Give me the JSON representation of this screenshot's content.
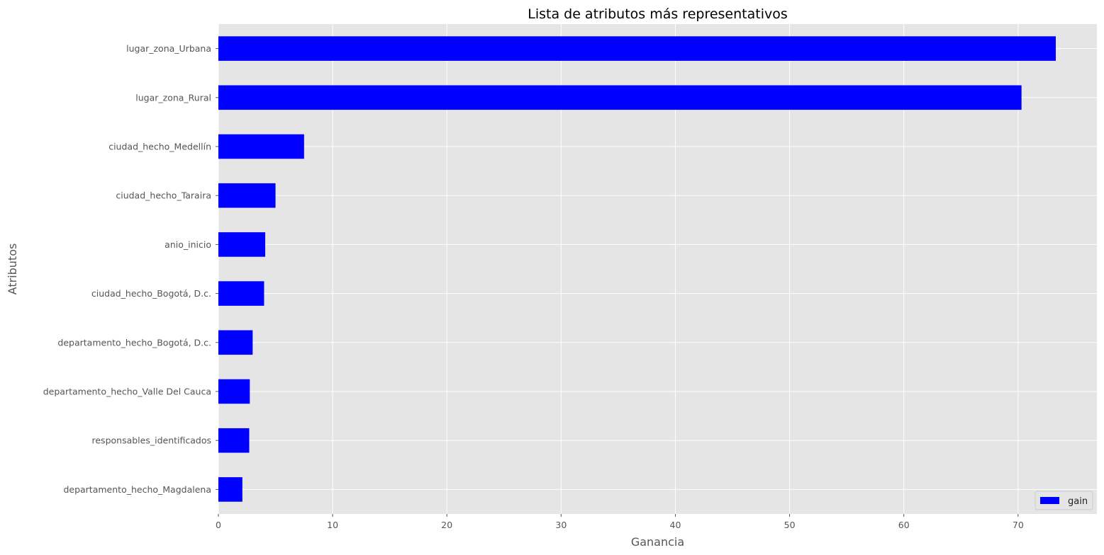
{
  "chart_data": {
    "type": "bar",
    "orientation": "horizontal",
    "title": "Lista de atributos más representativos",
    "xlabel": "Ganancia",
    "ylabel": "Atributos",
    "xlim": [
      0,
      76.9
    ],
    "xticks": [
      0,
      10,
      20,
      30,
      40,
      50,
      60,
      70
    ],
    "grid": true,
    "legend_position": "bottom-right",
    "categories": [
      "lugar_zona_Urbana",
      "lugar_zona_Rural",
      "ciudad_hecho_Medellín",
      "ciudad_hecho_Taraira",
      "anio_inicio",
      "ciudad_hecho_Bogotá, D.c.",
      "departamento_hecho_Bogotá, D.c.",
      "departamento_hecho_Valle Del Cauca",
      "responsables_identificados",
      "departamento_hecho_Magdalena"
    ],
    "series": [
      {
        "name": "gain",
        "color": "#0000ff",
        "values": [
          73.3,
          70.3,
          7.5,
          5.0,
          4.1,
          4.0,
          3.0,
          2.75,
          2.7,
          2.1
        ]
      }
    ]
  }
}
